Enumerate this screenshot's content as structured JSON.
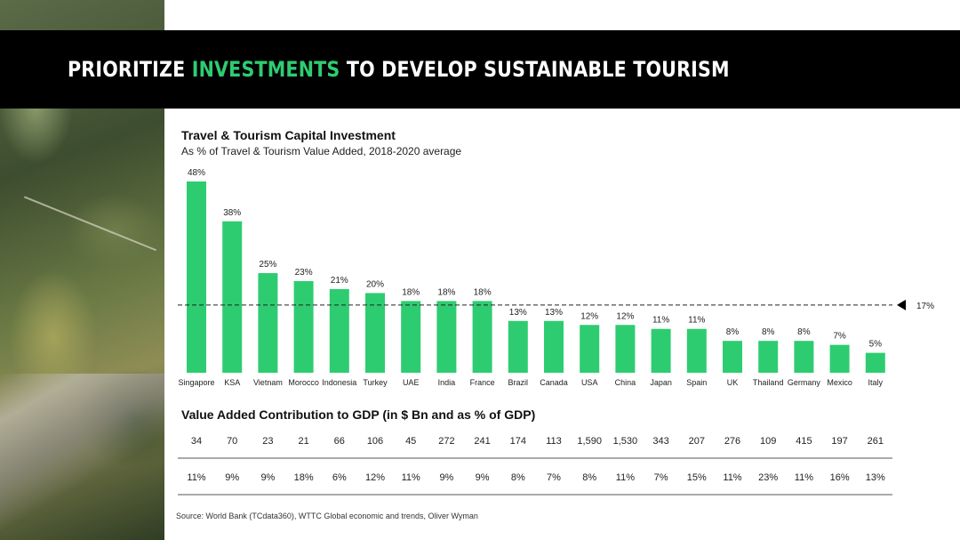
{
  "page": {
    "title_parts": [
      "PRIORITIZE ",
      "INVESTMENTS",
      " TO DEVELOP SUSTAINABLE TOURISM"
    ],
    "source": "Source: World Bank (TCdata360), WTTC Global economic and trends, Oliver Wyman"
  },
  "colors": {
    "bar": "#2ecc71",
    "highlight": "#2ecc71",
    "banner": "#000000"
  },
  "chart_data": {
    "type": "bar",
    "title": "Travel & Tourism Capital Investment",
    "subtitle": "As % of Travel & Tourism Value Added, 2018-2020 average",
    "categories": [
      "Singapore",
      "KSA",
      "Vietnam",
      "Morocco",
      "Indonesia",
      "Turkey",
      "UAE",
      "India",
      "France",
      "Brazil",
      "Canada",
      "USA",
      "China",
      "Japan",
      "Spain",
      "UK",
      "Thailand",
      "Germany",
      "Mexico",
      "Italy"
    ],
    "values": [
      48,
      38,
      25,
      23,
      21,
      20,
      18,
      18,
      18,
      13,
      13,
      12,
      12,
      11,
      11,
      8,
      8,
      8,
      7,
      5
    ],
    "data_labels": [
      "48%",
      "38%",
      "25%",
      "23%",
      "21%",
      "20%",
      "18%",
      "18%",
      "18%",
      "13%",
      "13%",
      "12%",
      "12%",
      "11%",
      "11%",
      "8%",
      "8%",
      "8%",
      "7%",
      "5%"
    ],
    "ylim": [
      0,
      48
    ],
    "reference_line": {
      "value": 17,
      "label": "17%"
    },
    "gdp_table": {
      "title": "Value Added Contribution to GDP (in $ Bn and as % of GDP)",
      "bn": [
        "34",
        "70",
        "23",
        "21",
        "66",
        "106",
        "45",
        "272",
        "241",
        "174",
        "113",
        "1,590",
        "1,530",
        "343",
        "207",
        "276",
        "109",
        "415",
        "197",
        "261"
      ],
      "pct": [
        "11%",
        "9%",
        "9%",
        "18%",
        "6%",
        "12%",
        "11%",
        "9%",
        "9%",
        "8%",
        "7%",
        "8%",
        "11%",
        "7%",
        "15%",
        "11%",
        "23%",
        "11%",
        "16%",
        "13%"
      ]
    }
  }
}
